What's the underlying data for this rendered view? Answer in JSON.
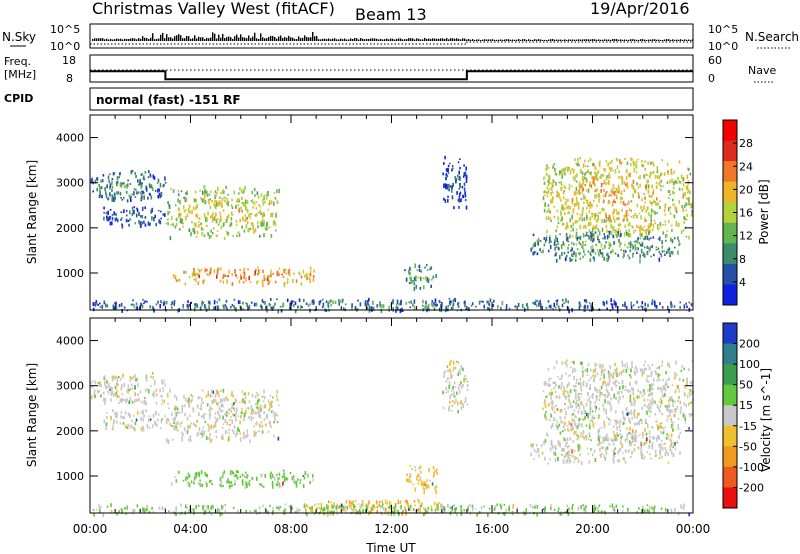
{
  "header": {
    "title": "Christmas Valley West (fitACF)",
    "beam": "Beam 13",
    "date": "19/Apr/2016"
  },
  "strips": {
    "nsky_label": "N.Sky",
    "nsky_ticks": [
      "10^5",
      "10^0"
    ],
    "nsearch_label": "N.Search",
    "nsearch_ticks": [
      "10^5",
      "10^0"
    ],
    "freq_label": "Freq.",
    "freq_unit": "[MHz]",
    "freq_ticks": [
      "18",
      "8"
    ],
    "nave_label": "Nave",
    "nave_ticks": [
      "60",
      "0"
    ],
    "cpid_label": "CPID",
    "cpid_text": "normal (fast) -151 RF",
    "freq_steps": [
      {
        "t": 0,
        "v": 12
      },
      {
        "t": 3,
        "v": 9
      },
      {
        "t": 15,
        "v": 12
      },
      {
        "t": 24,
        "v": 12
      }
    ]
  },
  "chart_data": [
    {
      "type": "heatmap",
      "quantity": "power",
      "xlabel": "Time UT",
      "ylabel": "Slant Range [km]",
      "xlim": [
        0,
        24
      ],
      "ylim": [
        180,
        4500
      ],
      "x_ticks": [
        "00:00",
        "04:00",
        "08:00",
        "12:00",
        "16:00",
        "20:00",
        "00:00"
      ],
      "y_ticks": [
        1000,
        2000,
        3000,
        4000
      ],
      "colorbar_label": "Power [dB]",
      "colorbar_ticks": [
        4,
        8,
        12,
        16,
        20,
        24,
        28
      ],
      "colorbar_range": [
        0,
        32
      ],
      "colorbar_colors": [
        "#1020e0",
        "#2850a8",
        "#3c8c6c",
        "#64b450",
        "#b4d23c",
        "#f0b428",
        "#f07828",
        "#dc2c20",
        "#f00000"
      ],
      "regions": [
        {
          "t": [
            0.0,
            3.0
          ],
          "r": [
            2600,
            3300
          ],
          "level": 10
        },
        {
          "t": [
            0.5,
            3.0
          ],
          "r": [
            2050,
            2500
          ],
          "level": 7
        },
        {
          "t": [
            3.0,
            7.5
          ],
          "r": [
            1800,
            2950
          ],
          "level": 19
        },
        {
          "t": [
            3.2,
            8.9
          ],
          "r": [
            780,
            1150
          ],
          "level": 25
        },
        {
          "t": [
            12.5,
            13.8
          ],
          "r": [
            650,
            1250
          ],
          "level": 12
        },
        {
          "t": [
            14.0,
            15.0
          ],
          "r": [
            2400,
            3600
          ],
          "level": 6
        },
        {
          "t": [
            18.0,
            24.0
          ],
          "r": [
            1800,
            3600
          ],
          "level": 21
        },
        {
          "t": [
            17.5,
            23.5
          ],
          "r": [
            1300,
            1950
          ],
          "level": 12
        },
        {
          "t": [
            0.0,
            24.0
          ],
          "r": [
            180,
            450
          ],
          "level": 9
        }
      ]
    },
    {
      "type": "heatmap",
      "quantity": "velocity",
      "xlabel": "Time UT",
      "ylabel": "Slant Range [km]",
      "xlim": [
        0,
        24
      ],
      "ylim": [
        180,
        4500
      ],
      "x_ticks": [
        "00:00",
        "04:00",
        "08:00",
        "12:00",
        "16:00",
        "20:00",
        "00:00"
      ],
      "y_ticks": [
        1000,
        2000,
        3000,
        4000
      ],
      "colorbar_label": "Velocity [m s^-1]",
      "colorbar_ticks": [
        200,
        100,
        50,
        15,
        -15,
        -50,
        -100,
        -200
      ],
      "colorbar_colors": [
        "#1e3cc8",
        "#2f7f8f",
        "#3c9c50",
        "#64c83c",
        "#c8c8c8",
        "#f0c030",
        "#f09a20",
        "#f05a20",
        "#e81010"
      ],
      "regions": [
        {
          "t": [
            0.0,
            3.0
          ],
          "r": [
            2600,
            3300
          ],
          "v": 0
        },
        {
          "t": [
            0.5,
            3.0
          ],
          "r": [
            2050,
            2500
          ],
          "v": 0
        },
        {
          "t": [
            3.0,
            7.5
          ],
          "r": [
            1800,
            2950
          ],
          "v": 0
        },
        {
          "t": [
            3.2,
            8.9
          ],
          "r": [
            780,
            1150
          ],
          "v": 30
        },
        {
          "t": [
            12.5,
            13.8
          ],
          "r": [
            650,
            1250
          ],
          "v": -30
        },
        {
          "t": [
            14.0,
            15.0
          ],
          "r": [
            2400,
            3600
          ],
          "v": 0
        },
        {
          "t": [
            18.0,
            24.0
          ],
          "r": [
            1800,
            3600
          ],
          "v": 0
        },
        {
          "t": [
            17.5,
            23.5
          ],
          "r": [
            1300,
            1950
          ],
          "v": 0
        },
        {
          "t": [
            8.5,
            14.0
          ],
          "r": [
            180,
            500
          ],
          "v": -40
        },
        {
          "t": [
            0.0,
            24.0
          ],
          "r": [
            180,
            400
          ],
          "v": 20
        }
      ]
    }
  ]
}
